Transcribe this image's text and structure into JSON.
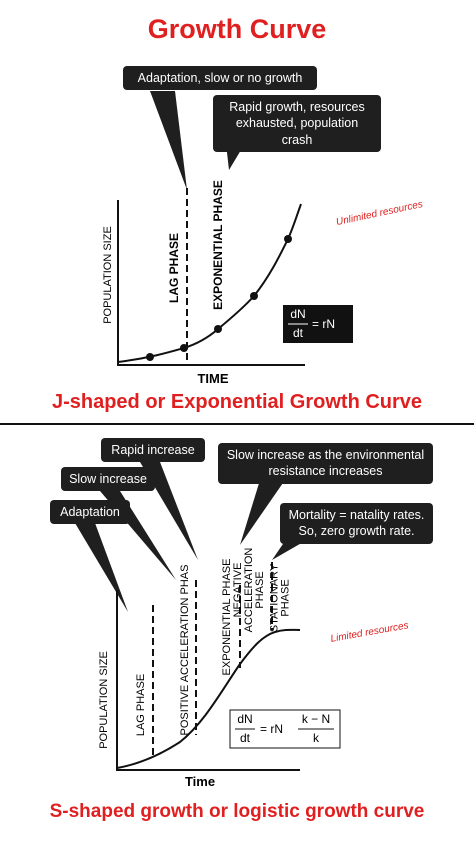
{
  "title": "Growth Curve",
  "j_curve": {
    "callouts": [
      "Adaptation, slow or no growth",
      "Rapid growth, resources exhausted, population crash"
    ],
    "y_axis_label": "POPULATION SIZE",
    "x_axis_label": "TIME",
    "phases": [
      "LAG PHASE",
      "EXPONENTIAL PHASE"
    ],
    "note": "Unlimited resources",
    "equation": {
      "numerator": "dN",
      "denominator": "dt",
      "rhs": "= rN"
    },
    "caption": "J-shaped or Exponential Growth Curve"
  },
  "s_curve": {
    "callouts": [
      "Rapid increase",
      "Slow increase",
      "Adaptation",
      "Slow increase as the environmental resistance increases",
      "Mortality = natality rates. So, zero growth rate."
    ],
    "y_axis_label": "POPULATION SIZE",
    "x_axis_label": "Time",
    "phases": [
      [
        "LAG PHASE"
      ],
      [
        "POSITIVE ACCELERATION PHAS"
      ],
      [
        "EXPONENTIAL PHASE"
      ],
      [
        "NEGATIVE",
        "ACCELERATION",
        "PHASE"
      ],
      [
        "STATIONARY",
        "PHASE"
      ]
    ],
    "note": "Limited resources",
    "equation": {
      "numerator": "dN",
      "denominator": "dt",
      "rhs": "= rN",
      "frac_numerator": "k − N",
      "frac_denominator": "k"
    },
    "caption": "S-shaped growth or logistic growth curve"
  }
}
